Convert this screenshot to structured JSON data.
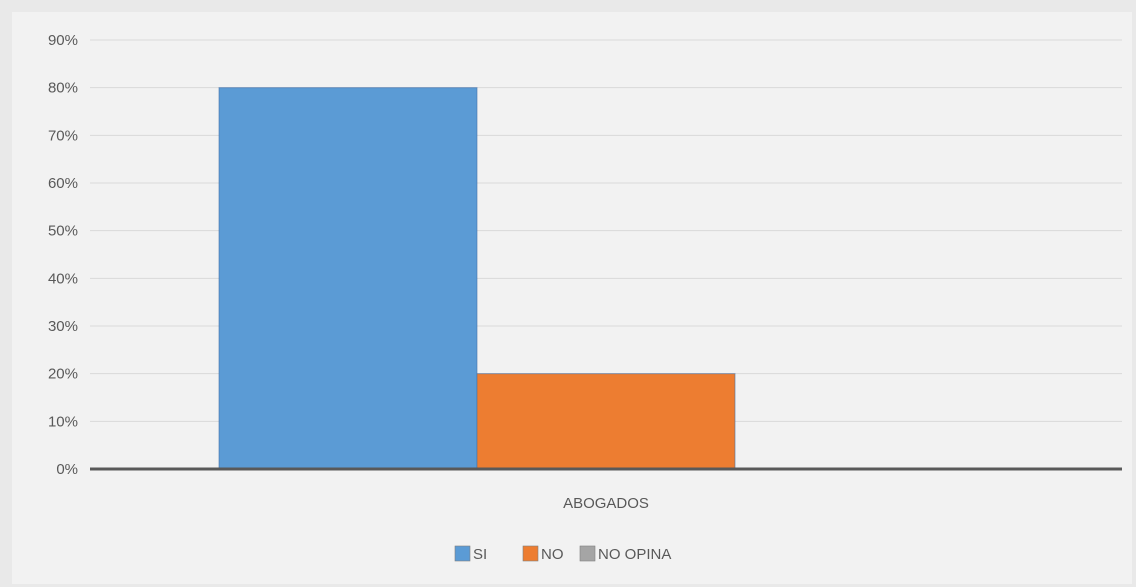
{
  "chart_data": {
    "type": "bar",
    "categories": [
      "ABOGADOS"
    ],
    "series": [
      {
        "name": "SI",
        "values": [
          80
        ],
        "color": "#5b9bd5"
      },
      {
        "name": "NO",
        "values": [
          20
        ],
        "color": "#ed7d31"
      },
      {
        "name": "NO OPINA",
        "values": [
          0
        ],
        "color": "#a5a5a5"
      }
    ],
    "title": "",
    "xlabel": "",
    "ylabel": "",
    "ylim": [
      0,
      90
    ],
    "yticks": [
      "0%",
      "10%",
      "20%",
      "30%",
      "40%",
      "50%",
      "60%",
      "70%",
      "80%",
      "90%"
    ],
    "grid": true,
    "legend": "bottom"
  }
}
